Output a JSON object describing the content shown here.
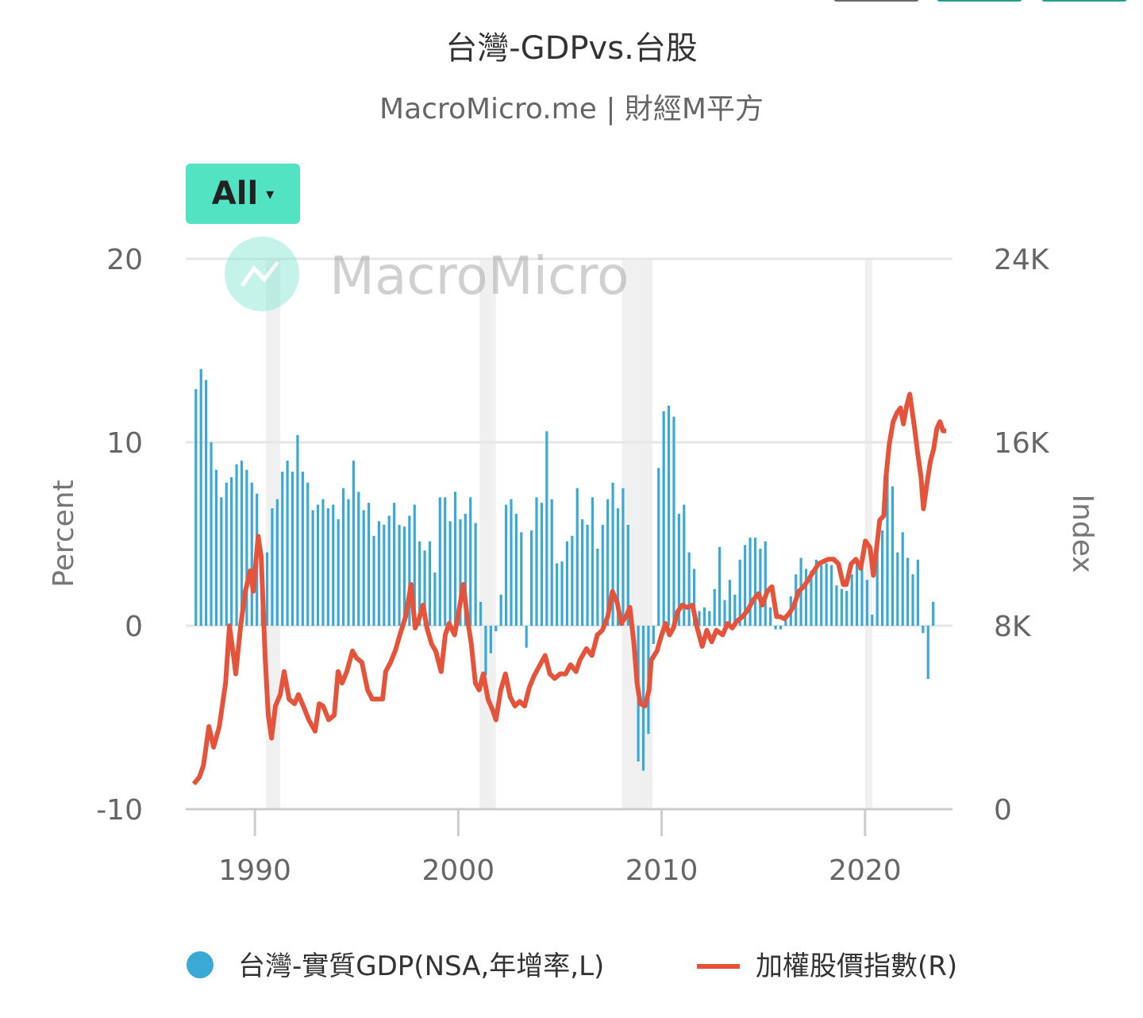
{
  "title": "台灣-GDPvs.台股",
  "subtitle": "MacroMicro.me | 財經M平方",
  "range_selector": {
    "label": "All",
    "caret": "▾"
  },
  "watermark": {
    "text": "MacroMicro",
    "icon": "macromicro-logo-icon"
  },
  "colors": {
    "gdp": "#3aa9d6",
    "index": "#e5533a",
    "button": "#52e3c2",
    "recession": "#f0f0f0",
    "grid": "#e6e6e6"
  },
  "chart_data": {
    "type": "bar+line",
    "title": "台灣-GDPvs.台股",
    "xlabel": "",
    "x_ticks": [
      "1990",
      "2000",
      "2010",
      "2020"
    ],
    "x_tick_values": [
      1990,
      2000,
      2010,
      2020
    ],
    "xlim": [
      1986.6,
      2024.3
    ],
    "left_axis": {
      "label": "Percent",
      "ticks": [
        "20",
        "10",
        "0",
        "-10"
      ],
      "tick_values": [
        20,
        10,
        0,
        -10
      ],
      "ylim": [
        -10,
        20
      ]
    },
    "right_axis": {
      "label": "Index",
      "ticks": [
        "24K",
        "16K",
        "8K",
        "0"
      ],
      "tick_values": [
        24000,
        16000,
        8000,
        0
      ],
      "ylim": [
        0,
        24000
      ]
    },
    "grid": true,
    "legend_position": "bottom",
    "recessions": [
      [
        1990.55,
        1991.25
      ],
      [
        2001.05,
        2001.85
      ],
      [
        2008.05,
        2009.55
      ],
      [
        2020.0,
        2020.35
      ]
    ],
    "series": [
      {
        "name": "台灣-實質GDP(NSA,年增率,L)",
        "type": "bar",
        "axis": "left",
        "start": "1987Q1",
        "frequency": "quarterly",
        "values": [
          12.9,
          14.0,
          13.4,
          10.0,
          8.5,
          7.0,
          7.8,
          8.1,
          8.8,
          9.0,
          8.5,
          7.8,
          7.2,
          3.9,
          4.0,
          6.4,
          6.9,
          8.4,
          9.0,
          8.4,
          10.4,
          8.4,
          7.8,
          6.3,
          6.6,
          6.9,
          6.4,
          6.6,
          5.8,
          7.5,
          6.9,
          9.0,
          7.3,
          6.3,
          6.7,
          4.9,
          5.7,
          5.5,
          6.0,
          6.7,
          5.5,
          5.4,
          6.0,
          6.6,
          4.6,
          4.1,
          4.6,
          2.9,
          7.0,
          7.0,
          5.7,
          7.3,
          5.8,
          6.1,
          7.0,
          5.6,
          1.3,
          -2.7,
          -1.5,
          -0.3,
          1.7,
          6.6,
          6.9,
          6.1,
          5.1,
          -1.2,
          5.2,
          7.0,
          6.7,
          10.6,
          6.9,
          3.4,
          3.5,
          4.6,
          4.9,
          7.5,
          5.8,
          5.5,
          7.0,
          4.2,
          5.5,
          6.9,
          7.8,
          6.4,
          7.5,
          5.5,
          -1.0,
          -7.4,
          -7.9,
          -5.9,
          -1.0,
          8.6,
          11.7,
          12.0,
          11.4,
          6.1,
          6.6,
          4.0,
          3.1,
          0.8,
          1.0,
          0.8,
          2.0,
          4.3,
          1.4,
          2.5,
          1.7,
          3.6,
          4.4,
          4.8,
          4.8,
          4.2,
          4.6,
          1.0,
          -0.2,
          -0.2,
          0.6,
          1.6,
          2.8,
          3.7,
          3.1,
          3.0,
          3.6,
          3.3,
          3.4,
          3.3,
          2.2,
          2.0,
          1.9,
          2.8,
          3.4,
          3.3,
          2.5,
          0.6,
          4.3,
          5.2,
          9.1,
          7.6,
          4.0,
          5.1,
          3.7,
          2.8,
          3.6,
          -0.4,
          -2.9,
          1.3
        ]
      },
      {
        "name": "加權股價指數(R)",
        "type": "line",
        "axis": "right",
        "points": [
          [
            1987.0,
            1100
          ],
          [
            1987.27,
            1400
          ],
          [
            1987.47,
            1900
          ],
          [
            1987.74,
            3600
          ],
          [
            1987.97,
            2700
          ],
          [
            1988.25,
            3600
          ],
          [
            1988.56,
            5500
          ],
          [
            1988.75,
            8000
          ],
          [
            1988.95,
            6700
          ],
          [
            1989.06,
            5900
          ],
          [
            1989.3,
            8000
          ],
          [
            1989.53,
            9500
          ],
          [
            1989.77,
            10400
          ],
          [
            1989.92,
            9500
          ],
          [
            1990.16,
            11900
          ],
          [
            1990.31,
            11000
          ],
          [
            1990.51,
            6500
          ],
          [
            1990.66,
            4100
          ],
          [
            1990.82,
            3100
          ],
          [
            1991.01,
            4500
          ],
          [
            1991.25,
            5000
          ],
          [
            1991.44,
            6000
          ],
          [
            1991.68,
            4800
          ],
          [
            1991.95,
            4600
          ],
          [
            1992.14,
            5000
          ],
          [
            1992.38,
            4500
          ],
          [
            1992.65,
            3900
          ],
          [
            1992.96,
            3400
          ],
          [
            1993.16,
            4600
          ],
          [
            1993.35,
            4500
          ],
          [
            1993.63,
            3900
          ],
          [
            1993.9,
            4100
          ],
          [
            1994.09,
            6000
          ],
          [
            1994.29,
            5500
          ],
          [
            1994.52,
            6000
          ],
          [
            1994.8,
            6900
          ],
          [
            1994.99,
            6600
          ],
          [
            1995.26,
            6400
          ],
          [
            1995.54,
            5200
          ],
          [
            1995.77,
            4800
          ],
          [
            1996.0,
            4800
          ],
          [
            1996.28,
            4800
          ],
          [
            1996.43,
            6000
          ],
          [
            1996.67,
            6400
          ],
          [
            1996.9,
            6900
          ],
          [
            1997.13,
            7600
          ],
          [
            1997.41,
            8400
          ],
          [
            1997.68,
            9800
          ],
          [
            1997.88,
            7900
          ],
          [
            1998.07,
            8300
          ],
          [
            1998.27,
            8900
          ],
          [
            1998.46,
            7900
          ],
          [
            1998.69,
            7200
          ],
          [
            1998.89,
            6900
          ],
          [
            1999.16,
            6000
          ],
          [
            1999.36,
            7600
          ],
          [
            1999.55,
            8100
          ],
          [
            1999.82,
            7600
          ],
          [
            2000.06,
            8800
          ],
          [
            2000.25,
            9800
          ],
          [
            2000.45,
            8300
          ],
          [
            2000.64,
            7200
          ],
          [
            2000.84,
            5500
          ],
          [
            2001.03,
            5200
          ],
          [
            2001.23,
            5900
          ],
          [
            2001.46,
            4800
          ],
          [
            2001.7,
            4300
          ],
          [
            2001.85,
            3900
          ],
          [
            2002.09,
            5200
          ],
          [
            2002.32,
            5900
          ],
          [
            2002.55,
            4900
          ],
          [
            2002.79,
            4500
          ],
          [
            2003.02,
            4700
          ],
          [
            2003.26,
            4500
          ],
          [
            2003.49,
            5300
          ],
          [
            2003.72,
            5800
          ],
          [
            2003.96,
            6200
          ],
          [
            2004.27,
            6700
          ],
          [
            2004.5,
            5900
          ],
          [
            2004.74,
            5700
          ],
          [
            2005.01,
            5900
          ],
          [
            2005.28,
            5900
          ],
          [
            2005.52,
            6300
          ],
          [
            2005.79,
            6000
          ],
          [
            2005.98,
            6500
          ],
          [
            2006.3,
            7000
          ],
          [
            2006.57,
            6700
          ],
          [
            2006.84,
            7600
          ],
          [
            2007.08,
            7800
          ],
          [
            2007.35,
            8400
          ],
          [
            2007.58,
            9500
          ],
          [
            2007.82,
            9000
          ],
          [
            2008.01,
            8100
          ],
          [
            2008.25,
            8400
          ],
          [
            2008.44,
            8800
          ],
          [
            2008.64,
            7200
          ],
          [
            2008.79,
            5500
          ],
          [
            2008.95,
            4600
          ],
          [
            2009.18,
            4500
          ],
          [
            2009.38,
            5200
          ],
          [
            2009.49,
            6500
          ],
          [
            2009.77,
            6900
          ],
          [
            2010.0,
            7600
          ],
          [
            2010.19,
            8100
          ],
          [
            2010.39,
            7600
          ],
          [
            2010.58,
            7900
          ],
          [
            2010.78,
            8600
          ],
          [
            2011.01,
            8900
          ],
          [
            2011.25,
            8800
          ],
          [
            2011.52,
            8900
          ],
          [
            2011.75,
            7900
          ],
          [
            2011.99,
            7100
          ],
          [
            2012.22,
            7800
          ],
          [
            2012.46,
            7300
          ],
          [
            2012.69,
            7800
          ],
          [
            2013.0,
            7600
          ],
          [
            2013.24,
            8100
          ],
          [
            2013.47,
            7900
          ],
          [
            2013.7,
            8200
          ],
          [
            2013.98,
            8400
          ],
          [
            2014.25,
            8700
          ],
          [
            2014.48,
            9100
          ],
          [
            2014.76,
            9400
          ],
          [
            2014.95,
            8900
          ],
          [
            2015.19,
            9500
          ],
          [
            2015.42,
            9700
          ],
          [
            2015.65,
            8400
          ],
          [
            2015.81,
            8400
          ],
          [
            2016.04,
            8300
          ],
          [
            2016.32,
            8600
          ],
          [
            2016.51,
            8900
          ],
          [
            2016.74,
            9500
          ],
          [
            2016.98,
            9700
          ],
          [
            2017.21,
            10000
          ],
          [
            2017.49,
            10400
          ],
          [
            2017.72,
            10700
          ],
          [
            2017.95,
            10800
          ],
          [
            2018.19,
            10900
          ],
          [
            2018.46,
            10900
          ],
          [
            2018.69,
            10700
          ],
          [
            2018.93,
            9800
          ],
          [
            2019.08,
            9800
          ],
          [
            2019.32,
            10700
          ],
          [
            2019.55,
            10900
          ],
          [
            2019.79,
            10500
          ],
          [
            2020.02,
            11700
          ],
          [
            2020.25,
            11400
          ],
          [
            2020.41,
            10200
          ],
          [
            2020.57,
            11400
          ],
          [
            2020.72,
            12600
          ],
          [
            2020.92,
            12800
          ],
          [
            2021.03,
            14500
          ],
          [
            2021.19,
            15900
          ],
          [
            2021.38,
            16900
          ],
          [
            2021.58,
            17300
          ],
          [
            2021.74,
            17500
          ],
          [
            2021.89,
            16800
          ],
          [
            2022.05,
            17600
          ],
          [
            2022.2,
            18100
          ],
          [
            2022.44,
            16600
          ],
          [
            2022.59,
            15500
          ],
          [
            2022.75,
            14500
          ],
          [
            2022.87,
            13100
          ],
          [
            2023.06,
            14300
          ],
          [
            2023.22,
            15200
          ],
          [
            2023.37,
            15700
          ],
          [
            2023.53,
            16600
          ],
          [
            2023.68,
            16900
          ],
          [
            2023.84,
            16500
          ],
          [
            2023.99,
            16500
          ]
        ]
      }
    ]
  }
}
